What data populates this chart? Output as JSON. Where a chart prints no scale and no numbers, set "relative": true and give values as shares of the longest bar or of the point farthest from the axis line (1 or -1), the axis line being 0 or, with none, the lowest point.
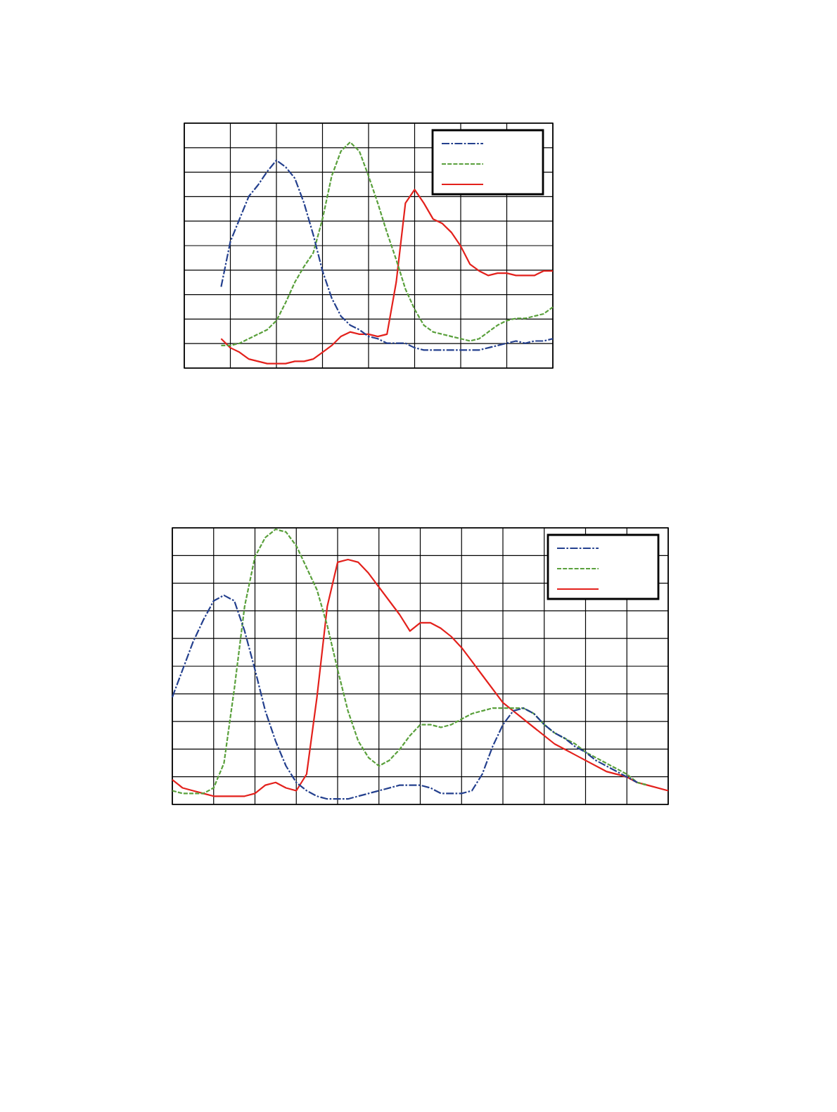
{
  "chart_data": [
    {
      "type": "line",
      "relative": true,
      "grid": true,
      "categories": [
        null,
        null,
        null,
        null,
        null,
        null,
        null,
        null,
        null,
        null,
        null,
        null,
        null,
        null,
        null,
        null,
        null,
        null,
        null,
        null,
        null,
        null,
        null,
        null,
        null,
        null,
        null,
        null,
        null,
        null,
        null,
        null,
        null,
        null,
        null,
        null,
        null,
        null,
        null,
        null,
        null
      ],
      "series": [
        {
          "color": "#24408e",
          "line_style": "dashdot",
          "values": [
            null,
            null,
            null,
            null,
            0.36,
            0.56,
            0.66,
            0.76,
            0.81,
            0.87,
            0.92,
            0.89,
            0.84,
            0.73,
            0.59,
            0.43,
            0.31,
            0.23,
            0.19,
            0.17,
            0.14,
            0.13,
            0.11,
            0.11,
            0.11,
            0.09,
            0.08,
            0.08,
            0.08,
            0.08,
            0.08,
            0.08,
            0.08,
            0.09,
            0.1,
            0.11,
            0.12,
            0.11,
            0.12,
            0.12,
            0.13
          ]
        },
        {
          "color": "#5aa03c",
          "line_style": "dashed",
          "values": [
            null,
            null,
            null,
            null,
            0.1,
            0.1,
            0.11,
            0.13,
            0.15,
            0.17,
            0.21,
            0.29,
            0.38,
            0.45,
            0.51,
            0.66,
            0.85,
            0.96,
            1.0,
            0.96,
            0.85,
            0.73,
            0.6,
            0.48,
            0.35,
            0.26,
            0.19,
            0.16,
            0.15,
            0.14,
            0.13,
            0.12,
            0.13,
            0.16,
            0.19,
            0.21,
            0.22,
            0.22,
            0.23,
            0.24,
            0.27
          ]
        },
        {
          "color": "#e3211c",
          "line_style": "solid",
          "values": [
            null,
            null,
            null,
            null,
            0.13,
            0.09,
            0.07,
            0.04,
            0.03,
            0.02,
            0.02,
            0.02,
            0.03,
            0.03,
            0.04,
            0.07,
            0.1,
            0.14,
            0.16,
            0.15,
            0.15,
            0.14,
            0.15,
            0.38,
            0.73,
            0.79,
            0.73,
            0.66,
            0.64,
            0.6,
            0.54,
            0.46,
            0.43,
            0.41,
            0.42,
            0.42,
            0.41,
            0.41,
            0.41,
            0.43,
            0.43
          ]
        }
      ]
    },
    {
      "type": "line",
      "relative": true,
      "grid": true,
      "categories": [
        null,
        null,
        null,
        null,
        null,
        null,
        null,
        null,
        null,
        null,
        null,
        null,
        null,
        null,
        null,
        null,
        null,
        null,
        null,
        null,
        null,
        null,
        null,
        null,
        null,
        null,
        null,
        null,
        null,
        null,
        null,
        null,
        null,
        null,
        null,
        null,
        null,
        null,
        null,
        null,
        null,
        null,
        null,
        null,
        null,
        null,
        null,
        null,
        null
      ],
      "series": [
        {
          "color": "#24408e",
          "line_style": "dashdot",
          "values": [
            0.39,
            0.49,
            0.59,
            0.67,
            0.74,
            0.76,
            0.74,
            0.63,
            0.49,
            0.34,
            0.23,
            0.14,
            0.08,
            0.05,
            0.03,
            0.02,
            0.02,
            0.02,
            0.03,
            0.04,
            0.05,
            0.06,
            0.07,
            0.07,
            0.07,
            0.06,
            0.04,
            0.04,
            0.04,
            0.05,
            0.11,
            0.21,
            0.29,
            0.34,
            0.35,
            0.33,
            0.29,
            0.26,
            0.24,
            0.21,
            0.19,
            0.16,
            0.14,
            0.12,
            0.1,
            0.08,
            null,
            null,
            null
          ]
        },
        {
          "color": "#5aa03c",
          "line_style": "dashed",
          "values": [
            0.05,
            0.04,
            0.04,
            0.04,
            0.06,
            0.15,
            0.42,
            0.72,
            0.9,
            0.97,
            1.0,
            0.99,
            0.94,
            0.86,
            0.78,
            0.65,
            0.49,
            0.34,
            0.23,
            0.17,
            0.14,
            0.16,
            0.2,
            0.25,
            0.29,
            0.29,
            0.28,
            0.29,
            0.31,
            0.33,
            0.34,
            0.35,
            0.35,
            0.35,
            0.35,
            0.33,
            0.29,
            0.26,
            0.24,
            0.22,
            0.19,
            0.17,
            0.15,
            0.13,
            0.11,
            0.08,
            0.07,
            null,
            null
          ]
        },
        {
          "color": "#e3211c",
          "line_style": "solid",
          "values": [
            0.09,
            0.06,
            0.05,
            0.04,
            0.03,
            0.03,
            0.03,
            0.03,
            0.04,
            0.07,
            0.08,
            0.06,
            0.05,
            0.11,
            0.39,
            0.72,
            0.88,
            0.89,
            0.88,
            0.84,
            0.79,
            0.74,
            0.69,
            0.63,
            0.66,
            0.66,
            0.64,
            0.61,
            0.57,
            0.52,
            0.47,
            0.42,
            0.37,
            0.34,
            0.31,
            0.28,
            0.25,
            0.22,
            0.2,
            0.18,
            0.16,
            0.14,
            0.12,
            0.11,
            0.1,
            0.08,
            0.07,
            0.06,
            0.05
          ]
        }
      ]
    }
  ]
}
